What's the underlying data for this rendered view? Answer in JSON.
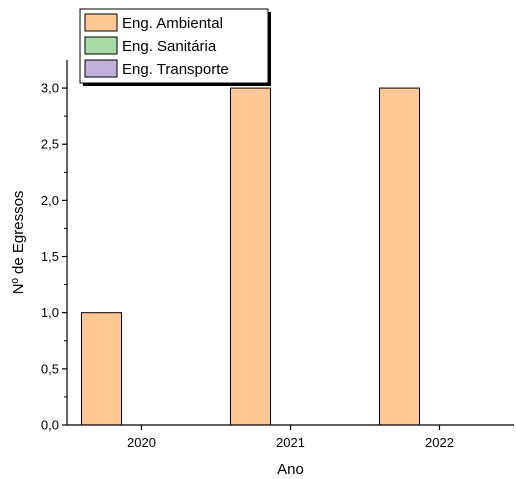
{
  "chart_data": {
    "type": "bar",
    "categories": [
      "2020",
      "2021",
      "2022"
    ],
    "series": [
      {
        "name": "Eng. Ambiental",
        "values": [
          1,
          3,
          3
        ],
        "color": "#FFC894"
      },
      {
        "name": "Eng. Sanitária",
        "values": [
          0,
          0,
          0
        ],
        "color": "#A6DCA6"
      },
      {
        "name": "Eng. Transporte",
        "values": [
          0,
          0,
          0
        ],
        "color": "#BFB0DC"
      }
    ],
    "xlabel": "Ano",
    "ylabel": "Nº de Egressos",
    "ylim": [
      0,
      3.25
    ],
    "yticks": [
      "0,0",
      "0,5",
      "1,0",
      "1,5",
      "2,0",
      "2,5",
      "3,0"
    ],
    "ytick_values": [
      0,
      0.5,
      1,
      1.5,
      2,
      2.5,
      3
    ],
    "grid": false,
    "legend_position": "top-left"
  }
}
